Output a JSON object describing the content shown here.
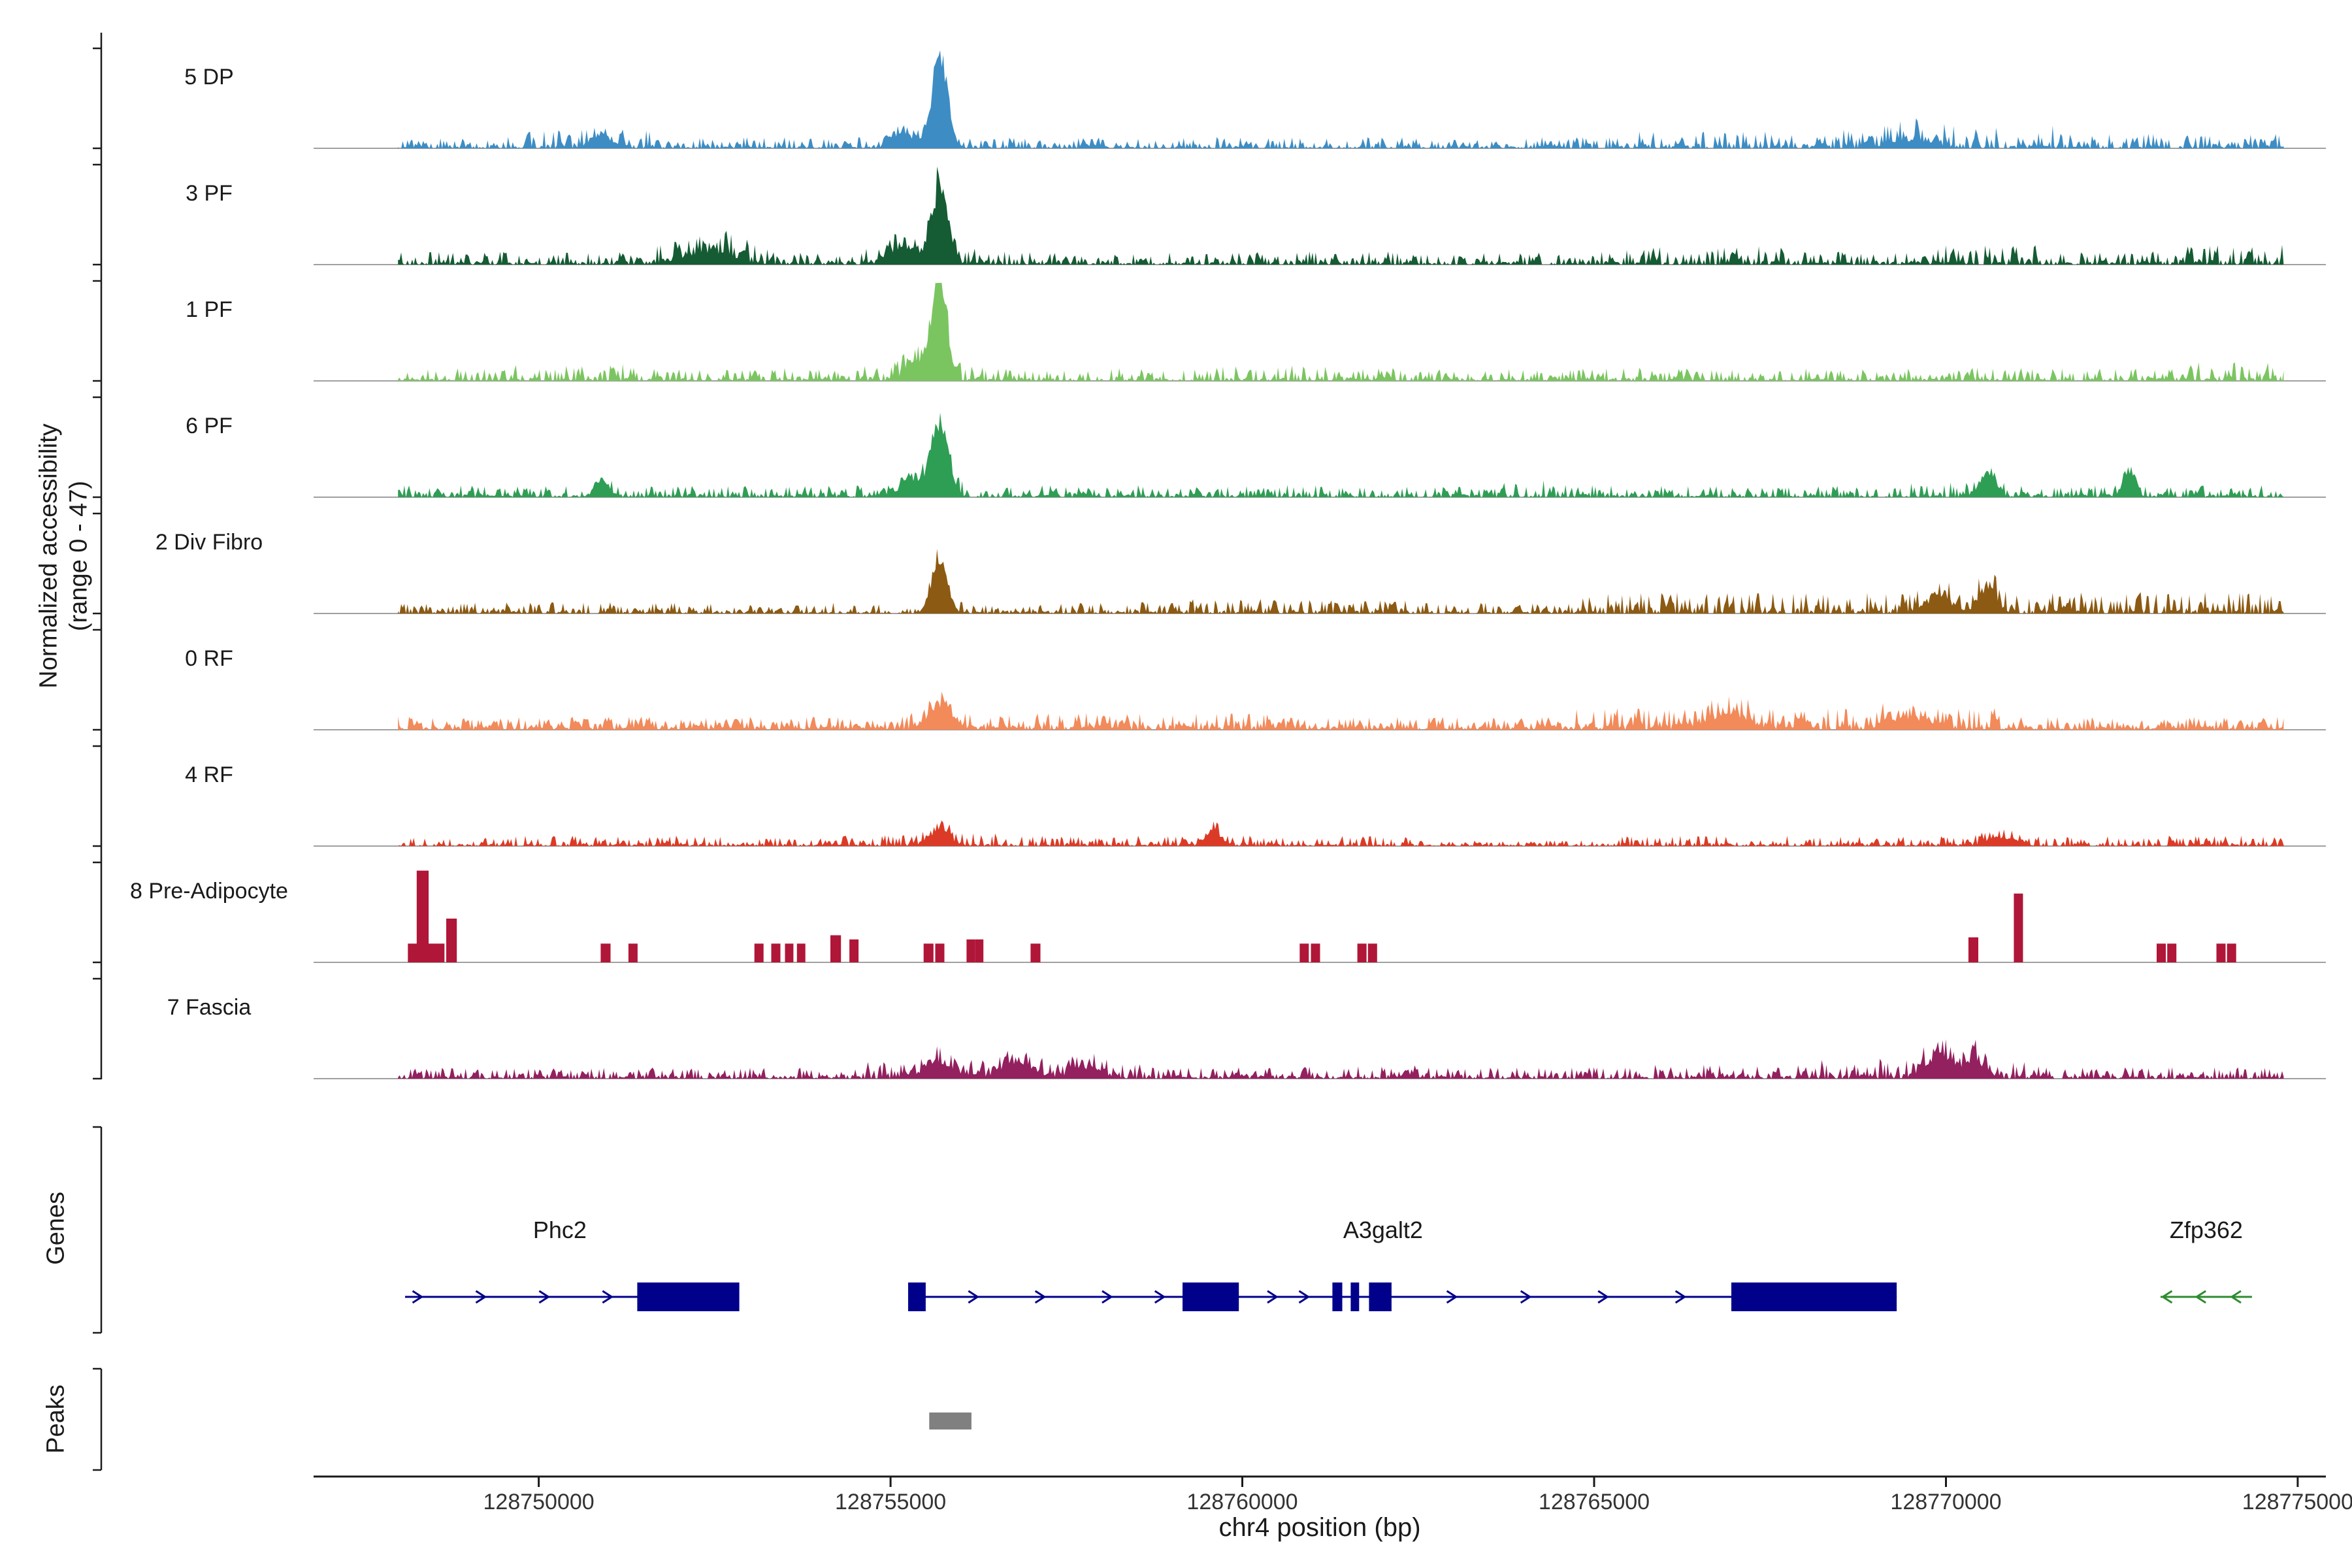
{
  "figure": {
    "y_axis_label_line1": "Normalized accessibility",
    "y_axis_label_line2": "(range 0 - 47)",
    "genes_section_label": "Genes",
    "peaks_section_label": "Peaks",
    "x_axis_title": "chr4 position (bp)"
  },
  "chart_data": {
    "type": "area",
    "subtype": "genome-coverage-tracks",
    "xlabel": "chr4 position (bp)",
    "ylabel": "Normalized accessibility (range 0 - 47)",
    "ylim": [
      0,
      47
    ],
    "x_domain_bp": [
      128746800,
      128775400
    ],
    "signal_start_bp": 128748000,
    "signal_end_bp": 128774800,
    "x_ticks": [
      {
        "bp": 128750000,
        "label": "128750000"
      },
      {
        "bp": 128755000,
        "label": "128755000"
      },
      {
        "bp": 128760000,
        "label": "128760000"
      },
      {
        "bp": 128765000,
        "label": "128765000"
      },
      {
        "bp": 128770000,
        "label": "128770000"
      },
      {
        "bp": 128775000,
        "label": "128775000"
      }
    ],
    "tracks": [
      {
        "label": "5 DP",
        "color": "#3D8DC4",
        "style": "area",
        "seed": 11,
        "noise": 2.6,
        "gap": 0.3,
        "regions": [
          [
            128749800,
            128751600,
            1.6
          ],
          [
            128765600,
            128768200,
            1.5
          ],
          [
            128768200,
            128771600,
            2.0
          ],
          [
            128771600,
            128774800,
            1.3
          ]
        ],
        "peaks": [
          [
            128755700,
            43,
            110
          ],
          [
            128750900,
            6,
            150
          ],
          [
            128755200,
            7,
            150
          ],
          [
            128769500,
            4,
            300
          ]
        ]
      },
      {
        "label": "3 PF",
        "color": "#155B33",
        "style": "area",
        "seed": 22,
        "noise": 3.0,
        "gap": 0.25,
        "regions": [
          [
            128751600,
            128753400,
            1.9
          ],
          [
            128754500,
            128756600,
            1.4
          ],
          [
            128765000,
            128768000,
            1.4
          ],
          [
            128769800,
            128771300,
            1.5
          ],
          [
            128773400,
            128774800,
            1.5
          ]
        ],
        "peaks": [
          [
            128755700,
            37,
            115
          ],
          [
            128752400,
            6,
            350
          ],
          [
            128755200,
            8,
            180
          ]
        ]
      },
      {
        "label": "1 PF",
        "color": "#7BC561",
        "style": "area",
        "seed": 33,
        "noise": 3.0,
        "gap": 0.28,
        "regions": [
          [
            128749500,
            128751500,
            1.3
          ],
          [
            128754500,
            128756600,
            1.3
          ],
          [
            128759500,
            128761500,
            1.2
          ],
          [
            128773400,
            128774800,
            1.4
          ]
        ],
        "peaks": [
          [
            128755700,
            46,
            105
          ],
          [
            128755350,
            10,
            140
          ]
        ]
      },
      {
        "label": "6 PF",
        "color": "#2E9E54",
        "style": "area",
        "seed": 44,
        "noise": 2.8,
        "gap": 0.3,
        "regions": [
          [
            128754800,
            128756600,
            1.4
          ],
          [
            128763500,
            128764500,
            1.4
          ],
          [
            128769500,
            128770400,
            1.3
          ]
        ],
        "peaks": [
          [
            128755700,
            35,
            120
          ],
          [
            128755300,
            9,
            150
          ],
          [
            128770600,
            13,
            100
          ],
          [
            128772600,
            10,
            90
          ],
          [
            128750900,
            7,
            100
          ]
        ]
      },
      {
        "label": "2 Div Fibro",
        "color": "#8C5A12",
        "style": "area",
        "seed": 55,
        "noise": 2.6,
        "gap": 0.28,
        "regions": [
          [
            128759000,
            128762500,
            1.3
          ],
          [
            128764800,
            128774800,
            1.9
          ]
        ],
        "peaks": [
          [
            128755700,
            27,
            105
          ],
          [
            128770600,
            11,
            130
          ],
          [
            128769900,
            7,
            200
          ]
        ]
      },
      {
        "label": "0 RF",
        "color": "#F28A5A",
        "style": "area",
        "seed": 66,
        "noise": 3.0,
        "gap": 0.15,
        "regions": [
          [
            128754800,
            128760500,
            1.3
          ],
          [
            128764500,
            128770800,
            1.7
          ]
        ],
        "peaks": [
          [
            128755700,
            11,
            170
          ],
          [
            128766900,
            6,
            300
          ],
          [
            128769500,
            5,
            300
          ]
        ]
      },
      {
        "label": "4 RF",
        "color": "#DB3B26",
        "style": "area",
        "seed": 77,
        "noise": 2.4,
        "gap": 0.25,
        "regions": [
          [
            128762400,
            128765200,
            0.55
          ],
          [
            128754800,
            128756500,
            1.3
          ]
        ],
        "peaks": [
          [
            128755700,
            8,
            140
          ],
          [
            128759600,
            7,
            110
          ],
          [
            128770800,
            4,
            200
          ]
        ]
      },
      {
        "label": "8 Pre-Adipocyte",
        "color": "#B01638",
        "style": "blocks",
        "blocks": [
          [
            128748400,
            9,
            520
          ],
          [
            128748350,
            44,
            170
          ],
          [
            128748760,
            21,
            150
          ],
          [
            128750950,
            9,
            140
          ],
          [
            128751340,
            9,
            130
          ],
          [
            128753130,
            9,
            130
          ],
          [
            128753370,
            9,
            130
          ],
          [
            128753560,
            9,
            120
          ],
          [
            128753730,
            9,
            120
          ],
          [
            128754220,
            13,
            150
          ],
          [
            128754480,
            11,
            130
          ],
          [
            128755540,
            9,
            140
          ],
          [
            128755700,
            9,
            130
          ],
          [
            128756140,
            11,
            120
          ],
          [
            128756260,
            11,
            120
          ],
          [
            128757060,
            9,
            140
          ],
          [
            128760880,
            9,
            130
          ],
          [
            128761040,
            9,
            130
          ],
          [
            128761700,
            9,
            130
          ],
          [
            128761850,
            9,
            130
          ],
          [
            128770390,
            12,
            140
          ],
          [
            128771030,
            33,
            130
          ],
          [
            128773060,
            9,
            130
          ],
          [
            128773210,
            9,
            130
          ],
          [
            128773910,
            9,
            130
          ],
          [
            128774060,
            9,
            130
          ]
        ]
      },
      {
        "label": "7 Fascia",
        "color": "#93205F",
        "style": "area",
        "seed": 99,
        "noise": 2.6,
        "gap": 0.22,
        "regions": [
          [
            128754600,
            128758600,
            1.5
          ],
          [
            128760000,
            128762500,
            1.2
          ],
          [
            128765800,
            128767500,
            1.3
          ],
          [
            128767500,
            128771500,
            1.8
          ]
        ],
        "peaks": [
          [
            128755700,
            8,
            200
          ],
          [
            128756800,
            6,
            250
          ],
          [
            128769900,
            9,
            200
          ],
          [
            128770400,
            8,
            150
          ],
          [
            128757800,
            5,
            200
          ]
        ]
      }
    ],
    "genes": [
      {
        "name": "Phc2",
        "strand": "+",
        "color": "#00008B",
        "start": 128748100,
        "end": 128752850,
        "exons": [
          [
            128751400,
            128752850
          ]
        ],
        "arrows": [
          128748300,
          128749200,
          128750100,
          128751000
        ],
        "label_bp": 128750300
      },
      {
        "name": "A3galt2",
        "strand": "+",
        "color": "#00008B",
        "start": 128755250,
        "end": 128769300,
        "exons": [
          [
            128755250,
            128755500
          ],
          [
            128759150,
            128759950
          ],
          [
            128761280,
            128761420
          ],
          [
            128761540,
            128761660
          ],
          [
            128761800,
            128762120
          ],
          [
            128766950,
            128769300
          ]
        ],
        "arrows": [
          128756200,
          128757150,
          128758100,
          128758850,
          128760450,
          128760900,
          128763000,
          128764050,
          128765150,
          128766250
        ],
        "label_bp": 128762000
      },
      {
        "name": "Zfp362",
        "strand": "-",
        "color": "#2F8B2F",
        "start": 128773050,
        "end": 128774350,
        "exons": [],
        "arrows": [
          128773120,
          128773600,
          128774100
        ],
        "label_bp": 128773700
      }
    ],
    "peaks_track": {
      "color": "#808080",
      "peaks": [
        {
          "start": 128755550,
          "end": 128756150
        }
      ]
    }
  }
}
